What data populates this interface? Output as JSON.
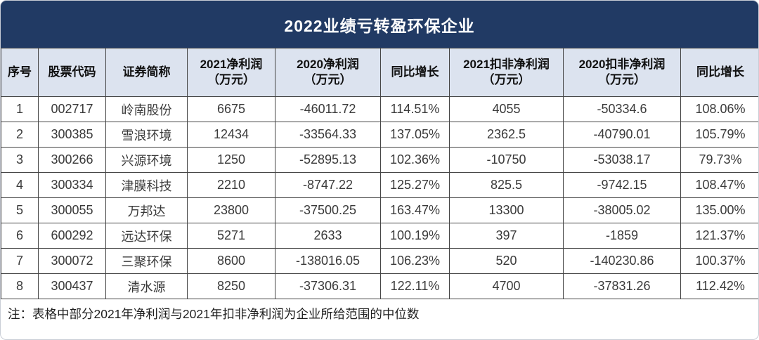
{
  "colors": {
    "title_bar_bg": "#213A64",
    "title_text": "#FFFFFF",
    "header_bg": "#DCE3EF",
    "border": "#454545",
    "body_text": "#3A3A3A",
    "header_text": "#101010"
  },
  "chart_data": {
    "type": "table",
    "title": "2022业绩亏转盈环保企业",
    "legend_position": "none",
    "grid": true,
    "columns": [
      "序号",
      "股票代码",
      "证券简称",
      "2021净利润\n（万元）",
      "2020净利润\n（万元）",
      "同比增长",
      "2021扣非净利润\n（万元）",
      "2020扣非净利润\n（万元）",
      "同比增长"
    ],
    "rows": [
      [
        "1",
        "002717",
        "岭南股份",
        "6675",
        "-46011.72",
        "114.51%",
        "4055",
        "-50334.6",
        "108.06%"
      ],
      [
        "2",
        "300385",
        "雪浪环境",
        "12434",
        "-33564.33",
        "137.05%",
        "2362.5",
        "-40790.01",
        "105.79%"
      ],
      [
        "3",
        "300266",
        "兴源环境",
        "1250",
        "-52895.13",
        "102.36%",
        "-10750",
        "-53038.17",
        "79.73%"
      ],
      [
        "4",
        "300334",
        "津膜科技",
        "2210",
        "-8747.22",
        "125.27%",
        "825.5",
        "-9742.15",
        "108.47%"
      ],
      [
        "5",
        "300055",
        "万邦达",
        "23800",
        "-37500.25",
        "163.47%",
        "13300",
        "-38005.02",
        "135.00%"
      ],
      [
        "6",
        "600292",
        "远达环保",
        "5271",
        "2633",
        "100.19%",
        "397",
        "-1859",
        "121.37%"
      ],
      [
        "7",
        "300072",
        "三聚环保",
        "8600",
        "-138016.05",
        "106.23%",
        "520",
        "-140230.86",
        "100.37%"
      ],
      [
        "8",
        "300437",
        "清水源",
        "8250",
        "-37306.31",
        "122.11%",
        "4700",
        "-37831.26",
        "112.42%"
      ]
    ],
    "note": "注：表格中部分2021年净利润与2021年扣非净利润为企业所给范围的中位数"
  }
}
